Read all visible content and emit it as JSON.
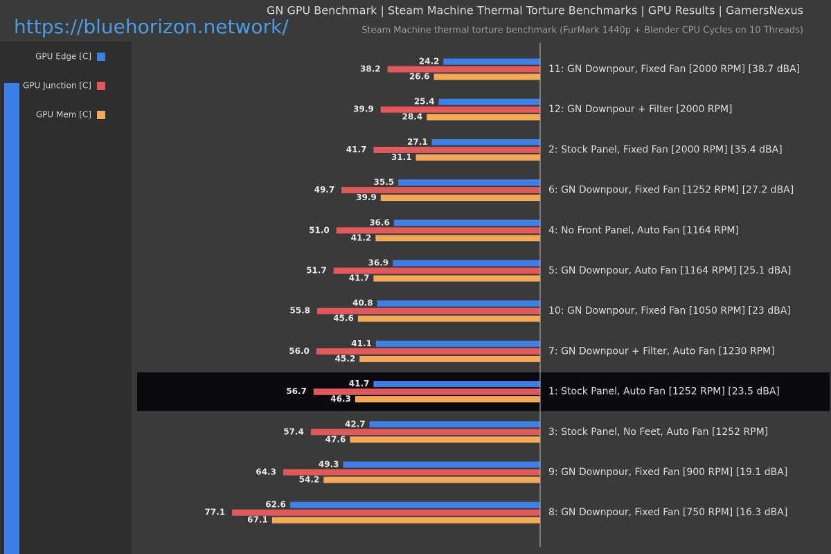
{
  "watermark": "https://bluehorizon.network/",
  "chart_data": {
    "type": "hbar",
    "title": "GN GPU Benchmark | Steam Machine Thermal Torture Benchmarks | GPU Results | GamersNexus",
    "subtitle": "Steam Machine thermal torture benchmark (FurMark 1440p + Blender CPU Cycles on 10 Threads)",
    "categories": [
      "11: GN Downpour, Fixed Fan [2000 RPM] [38.7 dBA]",
      "12: GN Downpour + Filter [2000 RPM]",
      "2: Stock Panel, Fixed Fan [2000 RPM] [35.4 dBA]",
      "6: GN Downpour, Fixed Fan [1252 RPM] [27.2 dBA]",
      "4: No Front Panel, Auto Fan [1164 RPM]",
      "5: GN Downpour, Auto Fan [1164 RPM] [25.1 dBA]",
      "10: GN Downpour, Fixed Fan [1050 RPM] [23 dBA]",
      "7: GN Downpour + Filter, Auto Fan [1230 RPM]",
      "1: Stock Panel, Auto Fan [1252 RPM] [23.5 dBA]",
      "3: Stock Panel, No Feet, Auto Fan [1252 RPM]",
      "9: GN Downpour, Fixed Fan [900 RPM] [19.1 dBA]",
      "8: GN Downpour, Fixed Fan [750 RPM] [16.3 dBA]"
    ],
    "highlight": 8,
    "series": [
      {
        "name": "GPU Edge [C]",
        "color": "#3f7fe8",
        "values": [
          24.2,
          25.4,
          27.1,
          35.5,
          36.6,
          36.9,
          40.8,
          41.1,
          41.7,
          42.7,
          49.3,
          62.6
        ]
      },
      {
        "name": "GPU Junction [C]",
        "color": "#e2595c",
        "values": [
          38.2,
          39.9,
          41.7,
          49.7,
          51.0,
          51.7,
          55.8,
          56.0,
          56.7,
          57.4,
          64.3,
          77.1
        ],
        "value_labels": [
          "38.2",
          "39.9",
          "41.7",
          "49.7",
          "51.0",
          "51.7",
          "55.8",
          "56.0",
          "56.7",
          "57.4",
          "64.3",
          "77.1"
        ]
      },
      {
        "name": "GPU Mem [C]",
        "color": "#f4a956",
        "values": [
          26.6,
          28.4,
          31.1,
          39.9,
          41.2,
          41.7,
          45.6,
          45.2,
          46.3,
          47.6,
          54.2,
          67.1
        ]
      }
    ]
  }
}
